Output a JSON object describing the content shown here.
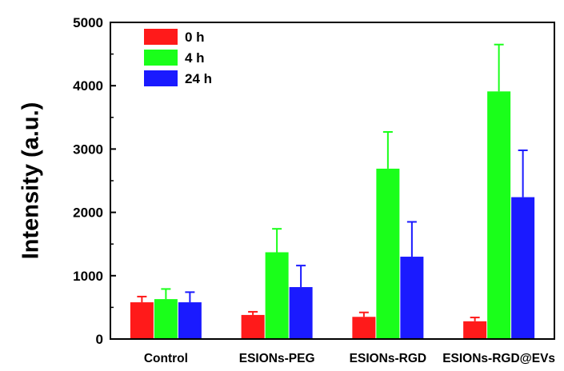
{
  "chart_data": {
    "type": "bar",
    "ylabel": "Intensity (a.u.)",
    "xlabel": "",
    "ylim": [
      0,
      5000
    ],
    "yticks": [
      "0",
      "1000",
      "2000",
      "3000",
      "4000",
      "5000"
    ],
    "categories": [
      "Control",
      "ESIONs-PEG",
      "ESIONs-RGD",
      "ESIONs-RGD@EVs"
    ],
    "series": [
      {
        "name": "0 h",
        "color": "#ff1a1a",
        "values": [
          580,
          380,
          350,
          280
        ],
        "errors": [
          90,
          50,
          70,
          60
        ]
      },
      {
        "name": "4 h",
        "color": "#1aff1a",
        "values": [
          630,
          1370,
          2690,
          3910
        ],
        "errors": [
          160,
          370,
          580,
          740
        ]
      },
      {
        "name": "24 h",
        "color": "#1a1aff",
        "values": [
          580,
          820,
          1300,
          2240
        ],
        "errors": [
          160,
          340,
          550,
          740
        ]
      }
    ],
    "legend_position": "top-left",
    "grid": false,
    "error_bars": "upper"
  }
}
